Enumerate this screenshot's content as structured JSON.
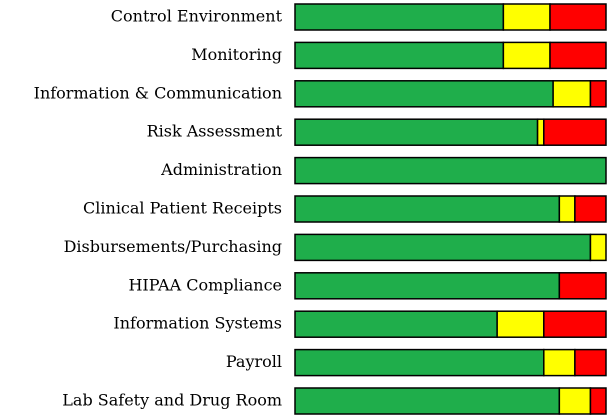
{
  "chart_data": {
    "type": "stacked-barh",
    "categories": [
      "Control Environment",
      "Monitoring",
      "Information & Communication",
      "Risk Assessment",
      "Administration",
      "Clinical Patient Receipts",
      "Disbursements/Purchasing",
      "HIPAA Compliance",
      "Information Systems",
      "Payroll",
      "Lab Safety and Drug Room"
    ],
    "series": [
      {
        "color": "#1fae4b",
        "values": [
          67,
          67,
          83,
          78,
          100,
          85,
          95,
          85,
          65,
          80,
          85
        ]
      },
      {
        "color": "#ffff00",
        "values": [
          15,
          15,
          12,
          2,
          0,
          5,
          5,
          0,
          15,
          10,
          10
        ]
      },
      {
        "color": "#ff0000",
        "values": [
          18,
          18,
          5,
          20,
          0,
          10,
          0,
          15,
          20,
          10,
          5
        ]
      }
    ],
    "xlim": [
      0,
      100
    ]
  }
}
